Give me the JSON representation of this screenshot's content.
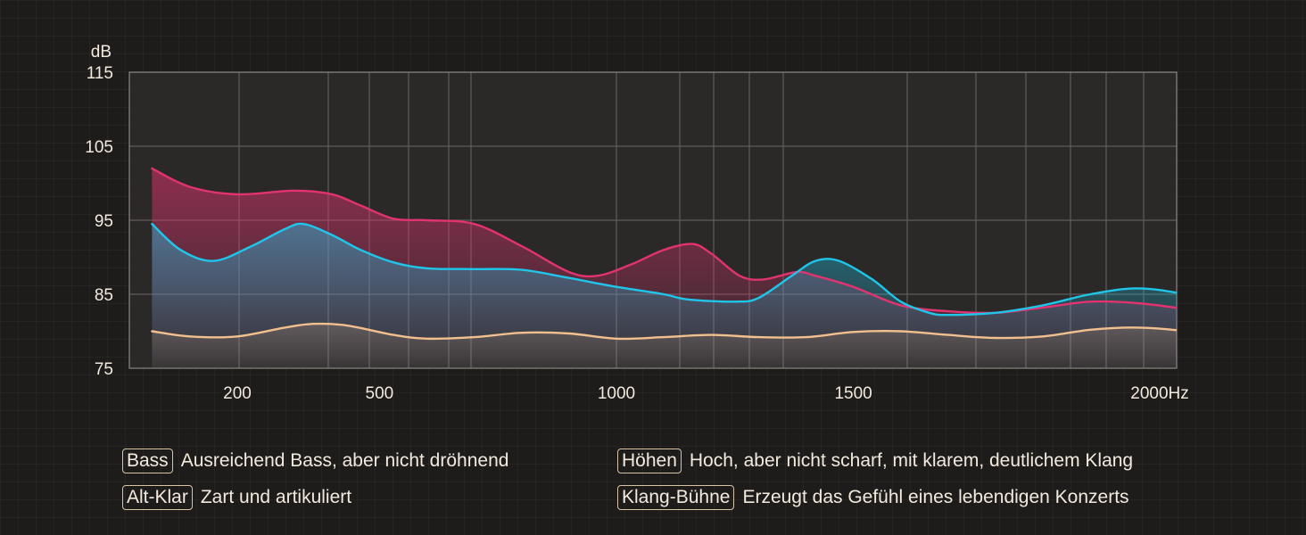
{
  "chart_data": {
    "type": "line",
    "ylabel": "dB",
    "xlabel": "Hz",
    "ylim": [
      75,
      115
    ],
    "yticks": [
      75,
      85,
      95,
      105,
      115
    ],
    "xticks": [
      {
        "value": 200,
        "label": "200"
      },
      {
        "value": 500,
        "label": "500"
      },
      {
        "value": 1000,
        "label": "1000"
      },
      {
        "value": 1500,
        "label": "1500"
      },
      {
        "value": 2000,
        "label": "2000Hz"
      }
    ],
    "grid": true,
    "series": [
      {
        "color": "#e0336f",
        "points": [
          [
            20,
            102
          ],
          [
            100,
            99.5
          ],
          [
            200,
            98.5
          ],
          [
            320,
            99
          ],
          [
            400,
            98.5
          ],
          [
            460,
            97
          ],
          [
            530,
            95.2
          ],
          [
            600,
            95
          ],
          [
            700,
            94.5
          ],
          [
            800,
            91.5
          ],
          [
            900,
            88
          ],
          [
            960,
            87.5
          ],
          [
            1030,
            89
          ],
          [
            1100,
            91
          ],
          [
            1160,
            91.8
          ],
          [
            1200,
            90.5
          ],
          [
            1260,
            87.5
          ],
          [
            1310,
            87
          ],
          [
            1380,
            88
          ],
          [
            1420,
            87.5
          ],
          [
            1500,
            86
          ],
          [
            1600,
            83.5
          ],
          [
            1700,
            82.7
          ],
          [
            1800,
            82.5
          ],
          [
            1900,
            83.2
          ],
          [
            2000,
            84
          ],
          [
            2100,
            83.8
          ],
          [
            2200,
            83
          ],
          [
            2300,
            82
          ],
          [
            2400,
            81.3
          ],
          [
            2500,
            81.2
          ]
        ]
      },
      {
        "color": "#1fc6ea",
        "points": [
          [
            20,
            94.5
          ],
          [
            80,
            91
          ],
          [
            150,
            89.5
          ],
          [
            230,
            91.5
          ],
          [
            300,
            93.8
          ],
          [
            340,
            94.5
          ],
          [
            400,
            93
          ],
          [
            460,
            91
          ],
          [
            530,
            89.3
          ],
          [
            600,
            88.5
          ],
          [
            700,
            88.4
          ],
          [
            800,
            88.3
          ],
          [
            900,
            87.2
          ],
          [
            1000,
            86
          ],
          [
            1100,
            85
          ],
          [
            1150,
            84.3
          ],
          [
            1250,
            84
          ],
          [
            1300,
            84.5
          ],
          [
            1370,
            87.5
          ],
          [
            1420,
            89.5
          ],
          [
            1470,
            89.5
          ],
          [
            1540,
            87
          ],
          [
            1600,
            84
          ],
          [
            1660,
            82.5
          ],
          [
            1700,
            82.2
          ],
          [
            1800,
            82.5
          ],
          [
            1900,
            83.5
          ],
          [
            2000,
            85
          ],
          [
            2100,
            85.8
          ],
          [
            2200,
            85
          ],
          [
            2300,
            83.5
          ],
          [
            2400,
            81.8
          ],
          [
            2500,
            81.5
          ],
          [
            2600,
            82.2
          ]
        ]
      },
      {
        "color": "#f2c08e",
        "points": [
          [
            20,
            80
          ],
          [
            100,
            79.3
          ],
          [
            200,
            79.3
          ],
          [
            300,
            80.5
          ],
          [
            360,
            81
          ],
          [
            430,
            80.8
          ],
          [
            530,
            79.5
          ],
          [
            600,
            79
          ],
          [
            700,
            79.2
          ],
          [
            800,
            79.8
          ],
          [
            900,
            79.7
          ],
          [
            1000,
            79
          ],
          [
            1100,
            79.2
          ],
          [
            1200,
            79.5
          ],
          [
            1300,
            79.2
          ],
          [
            1400,
            79.2
          ],
          [
            1500,
            79.9
          ],
          [
            1600,
            80
          ],
          [
            1700,
            79.5
          ],
          [
            1800,
            79.1
          ],
          [
            1900,
            79.3
          ],
          [
            2000,
            80.2
          ],
          [
            2100,
            80.5
          ],
          [
            2200,
            80
          ],
          [
            2300,
            78.8
          ],
          [
            2400,
            78.4
          ],
          [
            2500,
            78.8
          ],
          [
            2600,
            79.4
          ]
        ]
      }
    ]
  },
  "legend": [
    {
      "tag": "Bass",
      "text": "Ausreichend Bass, aber nicht dröhnend"
    },
    {
      "tag": "Höhen",
      "text": "Hoch, aber nicht scharf, mit klarem, deutlichem Klang"
    },
    {
      "tag": "Alt-Klar",
      "text": "Zart und artikuliert"
    },
    {
      "tag": "Klang-Bühne",
      "text": "Erzeugt das Gefühl eines lebendigen Konzerts"
    }
  ]
}
